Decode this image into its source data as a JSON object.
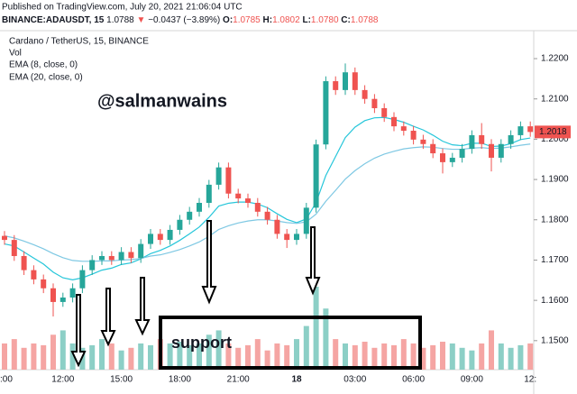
{
  "header": {
    "published": "Published on TradingView.com, July 20, 2021 21:06:04 UTC",
    "symbol": "BINANCE:ADAUSDT, 15",
    "last": "1.0788",
    "arrow": "▼",
    "change": "−0.0437 (−3.89%)",
    "o_label": "O:",
    "o": "1.0785",
    "h_label": "H:",
    "h": "1.0802",
    "l_label": "L:",
    "l": "1.0780",
    "c_label": "C:",
    "c": "1.0788"
  },
  "chart_data": {
    "type": "candlestick",
    "title": "Cardano / TetherUS, 15, BINANCE",
    "volume_label": "Vol",
    "watermark": "@salmanwains",
    "annotation": "support",
    "up_color": "#26a69a",
    "down_color": "#ef5350",
    "up_volume_color": "#8ccfc6",
    "down_volume_color": "#f5a5a3",
    "ylim": [
      1.1428,
      1.2256
    ],
    "yticks": [
      {
        "value": 1.15,
        "label": "1.1500"
      },
      {
        "value": 1.16,
        "label": "1.1600"
      },
      {
        "value": 1.17,
        "label": "1.1700"
      },
      {
        "value": 1.18,
        "label": "1.1800"
      },
      {
        "value": 1.19,
        "label": "1.1900"
      },
      {
        "value": 1.2,
        "label": "1.2000"
      },
      {
        "value": 1.21,
        "label": "1.2100"
      },
      {
        "value": 1.22,
        "label": "1.2200"
      }
    ],
    "grid": false,
    "categories": [
      ":00",
      null,
      null,
      null,
      null,
      null,
      "12:00",
      null,
      null,
      null,
      null,
      null,
      "15:00",
      null,
      null,
      null,
      null,
      null,
      "18:00",
      null,
      null,
      null,
      null,
      null,
      "21:00",
      null,
      null,
      null,
      null,
      null,
      "18",
      null,
      null,
      null,
      null,
      null,
      "03:00",
      null,
      null,
      null,
      null,
      null,
      "06:00",
      null,
      null,
      null,
      null,
      null,
      "09:00",
      null,
      null,
      null,
      null,
      null,
      "12:"
    ],
    "open": [
      1.176,
      1.175,
      1.171,
      1.1675,
      1.1652,
      1.163,
      1.1596,
      1.1607,
      1.163,
      1.1675,
      1.17,
      1.171,
      1.17,
      1.172,
      1.1705,
      1.174,
      1.1765,
      1.175,
      1.1775,
      1.18,
      1.182,
      1.1842,
      1.1887,
      1.193,
      1.1865,
      1.1853,
      1.1842,
      1.182,
      1.18,
      1.1765,
      1.175,
      1.1765,
      1.183,
      1.1987,
      1.2144,
      1.2122,
      1.2166,
      1.2122,
      1.21,
      1.2077,
      1.2055,
      1.2032,
      1.2021,
      1.1999,
      1.1988,
      1.1965,
      1.1943,
      1.1954,
      1.1976,
      1.201,
      1.1988,
      1.1954,
      1.1988,
      1.201,
      1.2032
    ],
    "high": [
      1.1772,
      1.1762,
      1.1722,
      1.1687,
      1.1664,
      1.1642,
      1.1619,
      1.1642,
      1.1687,
      1.1712,
      1.1722,
      1.1722,
      1.1732,
      1.1732,
      1.1752,
      1.1777,
      1.1777,
      1.1787,
      1.1812,
      1.1832,
      1.1854,
      1.1899,
      1.1942,
      1.1942,
      1.1877,
      1.1865,
      1.1854,
      1.1832,
      1.1812,
      1.1777,
      1.1777,
      1.1842,
      1.1999,
      1.2156,
      1.2156,
      1.2188,
      1.2178,
      1.2134,
      1.2112,
      1.2089,
      1.2067,
      1.2044,
      1.2033,
      1.2011,
      1.2,
      1.1977,
      1.1966,
      1.1988,
      1.2022,
      1.204,
      1.2,
      1.2,
      1.2022,
      1.2044,
      1.2044
    ],
    "low": [
      1.1738,
      1.1698,
      1.1663,
      1.164,
      1.1618,
      1.156,
      1.1584,
      1.1595,
      1.1618,
      1.1663,
      1.1688,
      1.1688,
      1.1688,
      1.1693,
      1.1693,
      1.1728,
      1.1738,
      1.1738,
      1.1763,
      1.1788,
      1.1808,
      1.183,
      1.1875,
      1.1853,
      1.1841,
      1.183,
      1.1808,
      1.1788,
      1.1753,
      1.173,
      1.1738,
      1.1753,
      1.1818,
      1.1975,
      1.211,
      1.211,
      1.211,
      1.2088,
      1.2065,
      1.2043,
      1.202,
      1.2009,
      1.1987,
      1.1976,
      1.1953,
      1.1915,
      1.1931,
      1.1942,
      1.1964,
      1.1976,
      1.192,
      1.1942,
      1.1976,
      1.1998,
      1.2006
    ],
    "close": [
      1.175,
      1.171,
      1.1675,
      1.1652,
      1.163,
      1.1596,
      1.1607,
      1.163,
      1.1675,
      1.17,
      1.171,
      1.17,
      1.172,
      1.1705,
      1.174,
      1.1765,
      1.175,
      1.1775,
      1.18,
      1.182,
      1.1842,
      1.1887,
      1.193,
      1.1865,
      1.1853,
      1.1842,
      1.182,
      1.18,
      1.1765,
      1.175,
      1.1765,
      1.183,
      1.1987,
      1.2144,
      1.2122,
      1.2166,
      1.2122,
      1.21,
      1.2077,
      1.2055,
      1.2032,
      1.2021,
      1.1999,
      1.1988,
      1.1965,
      1.1943,
      1.1954,
      1.1976,
      1.201,
      1.1988,
      1.1954,
      1.1988,
      1.201,
      1.2032,
      1.2018
    ],
    "volume": [
      30,
      35,
      25,
      30,
      28,
      40,
      45,
      30,
      25,
      28,
      35,
      30,
      22,
      25,
      30,
      28,
      35,
      30,
      32,
      28,
      30,
      40,
      45,
      30,
      25,
      28,
      35,
      22,
      30,
      28,
      35,
      50,
      95,
      70,
      35,
      30,
      28,
      32,
      25,
      30,
      28,
      35,
      30,
      25,
      28,
      32,
      30,
      25,
      22,
      30,
      45,
      30,
      25,
      28,
      30
    ],
    "series": [
      {
        "name": "EMA (8, close, 0)",
        "color": "#26c6da",
        "values": [
          1.174,
          1.1735,
          1.172,
          1.1705,
          1.169,
          1.167,
          1.1656,
          1.1651,
          1.1656,
          1.1665,
          1.1675,
          1.168,
          1.1689,
          1.1693,
          1.1703,
          1.1716,
          1.1724,
          1.1735,
          1.1749,
          1.1765,
          1.1782,
          1.1806,
          1.1834,
          1.1841,
          1.1844,
          1.1844,
          1.1839,
          1.183,
          1.1815,
          1.1801,
          1.1793,
          1.1802,
          1.1843,
          1.191,
          1.1957,
          1.2004,
          1.203,
          1.2046,
          1.2053,
          1.2054,
          1.2049,
          1.2042,
          1.2032,
          1.2023,
          1.201,
          1.1995,
          1.1986,
          1.1984,
          1.199,
          1.199,
          1.1982,
          1.1983,
          1.1989,
          1.1999,
          1.2003
        ]
      },
      {
        "name": "EMA (20, close, 0)",
        "color": "#7ec8e3",
        "values": [
          1.176,
          1.1755,
          1.1747,
          1.1738,
          1.1728,
          1.1716,
          1.1706,
          1.1699,
          1.1697,
          1.1697,
          1.1698,
          1.1698,
          1.17,
          1.1701,
          1.1704,
          1.171,
          1.1713,
          1.1719,
          1.1726,
          1.1735,
          1.1745,
          1.1759,
          1.1776,
          1.1785,
          1.1792,
          1.1797,
          1.18,
          1.18,
          1.1797,
          1.1793,
          1.1791,
          1.1795,
          1.1814,
          1.1846,
          1.1873,
          1.1901,
          1.1922,
          1.1939,
          1.1953,
          1.1963,
          1.197,
          1.1976,
          1.1979,
          1.1981,
          1.198,
          1.1977,
          1.1975,
          1.1975,
          1.1978,
          1.1979,
          1.1977,
          1.1978,
          1.1981,
          1.1985,
          1.1988
        ]
      }
    ]
  }
}
